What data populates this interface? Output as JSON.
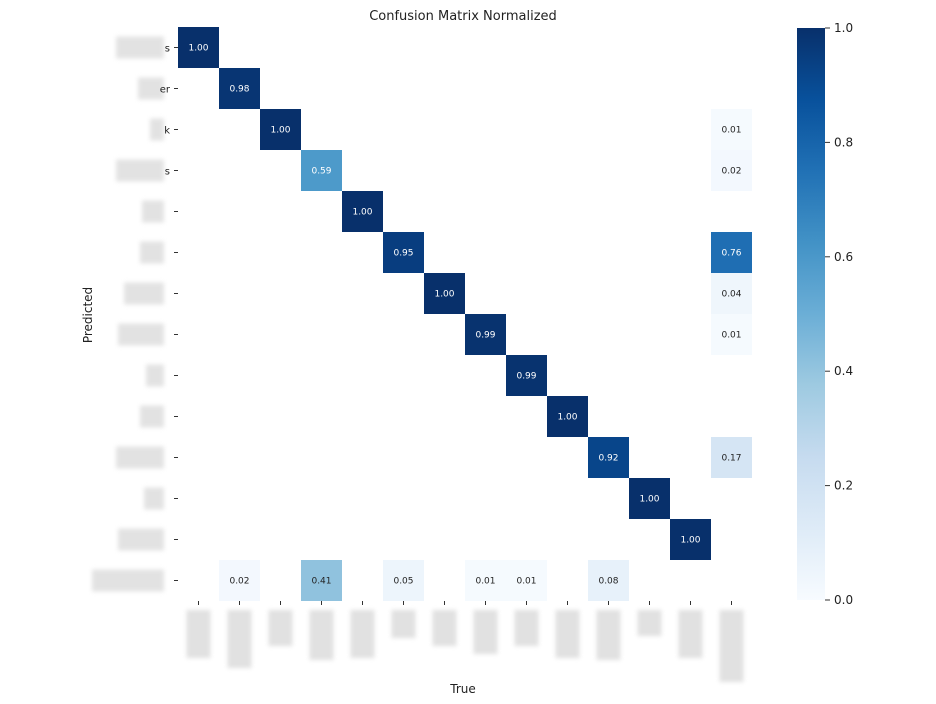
{
  "chart_data": {
    "type": "heatmap",
    "title": "Confusion Matrix Normalized",
    "xlabel": "True",
    "ylabel": "Predicted",
    "n_rows": 14,
    "n_cols": 14,
    "row_tick_suffixes": [
      "s",
      "er",
      "k",
      "s",
      "",
      "",
      "",
      "",
      "",
      "",
      "",
      "",
      "",
      ""
    ],
    "cells": [
      {
        "row": 0,
        "col": 0,
        "value": 1.0,
        "label": "1.00"
      },
      {
        "row": 1,
        "col": 1,
        "value": 0.98,
        "label": "0.98"
      },
      {
        "row": 2,
        "col": 2,
        "value": 1.0,
        "label": "1.00"
      },
      {
        "row": 2,
        "col": 13,
        "value": 0.01,
        "label": "0.01"
      },
      {
        "row": 3,
        "col": 3,
        "value": 0.59,
        "label": "0.59"
      },
      {
        "row": 3,
        "col": 13,
        "value": 0.02,
        "label": "0.02"
      },
      {
        "row": 4,
        "col": 4,
        "value": 1.0,
        "label": "1.00"
      },
      {
        "row": 5,
        "col": 5,
        "value": 0.95,
        "label": "0.95"
      },
      {
        "row": 5,
        "col": 13,
        "value": 0.76,
        "label": "0.76"
      },
      {
        "row": 6,
        "col": 6,
        "value": 1.0,
        "label": "1.00"
      },
      {
        "row": 6,
        "col": 13,
        "value": 0.04,
        "label": "0.04"
      },
      {
        "row": 7,
        "col": 7,
        "value": 0.99,
        "label": "0.99"
      },
      {
        "row": 7,
        "col": 13,
        "value": 0.01,
        "label": "0.01"
      },
      {
        "row": 8,
        "col": 8,
        "value": 0.99,
        "label": "0.99"
      },
      {
        "row": 9,
        "col": 9,
        "value": 1.0,
        "label": "1.00"
      },
      {
        "row": 10,
        "col": 10,
        "value": 0.92,
        "label": "0.92"
      },
      {
        "row": 10,
        "col": 13,
        "value": 0.17,
        "label": "0.17"
      },
      {
        "row": 11,
        "col": 11,
        "value": 1.0,
        "label": "1.00"
      },
      {
        "row": 12,
        "col": 12,
        "value": 1.0,
        "label": "1.00"
      },
      {
        "row": 13,
        "col": 1,
        "value": 0.02,
        "label": "0.02"
      },
      {
        "row": 13,
        "col": 3,
        "value": 0.41,
        "label": "0.41"
      },
      {
        "row": 13,
        "col": 5,
        "value": 0.05,
        "label": "0.05"
      },
      {
        "row": 13,
        "col": 7,
        "value": 0.01,
        "label": "0.01"
      },
      {
        "row": 13,
        "col": 8,
        "value": 0.01,
        "label": "0.01"
      },
      {
        "row": 13,
        "col": 10,
        "value": 0.08,
        "label": "0.08"
      }
    ],
    "colorbar": {
      "min": 0.0,
      "max": 1.0,
      "ticks": [
        "0.0",
        "0.2",
        "0.4",
        "0.6",
        "0.8",
        "1.0"
      ],
      "colormap": "Blues",
      "stops": [
        "#f7fbff",
        "#deebf7",
        "#c6dbef",
        "#9ecae1",
        "#6baed6",
        "#4292c6",
        "#2171b5",
        "#08519c",
        "#08306b"
      ]
    },
    "tick_labels_redacted": true
  }
}
